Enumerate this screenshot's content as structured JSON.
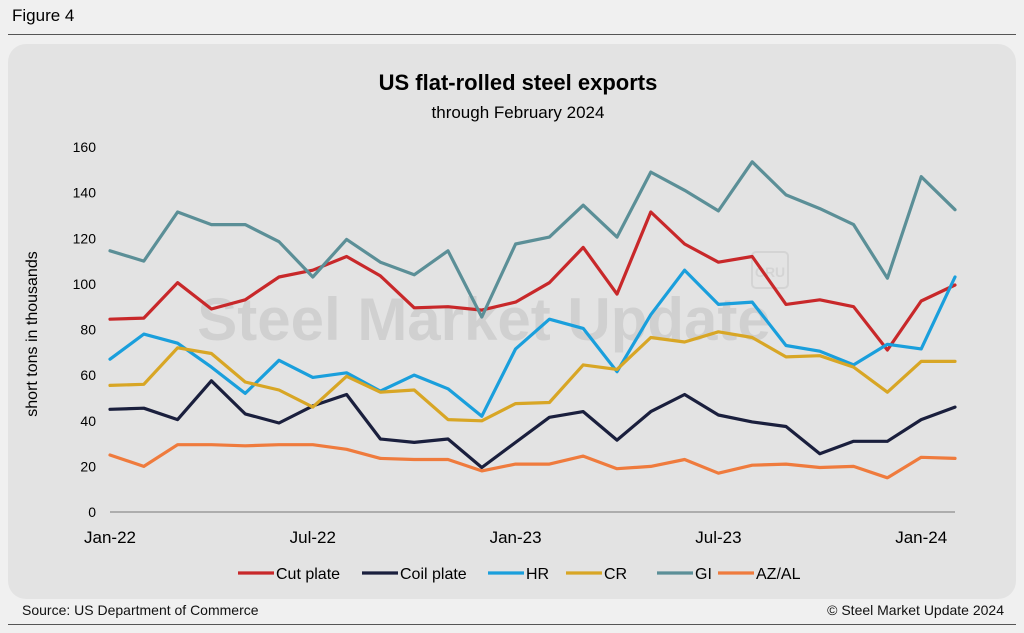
{
  "figure_label": "Figure 4",
  "watermark": "Steel Market Update",
  "watermark_badge": "CRU",
  "source": "Source: US Department of Commerce",
  "copyright": "© Steel Market Update 2024",
  "chart_data": {
    "type": "line",
    "title": "US flat-rolled steel exports",
    "subtitle": "through February 2024",
    "xlabel": "",
    "ylabel": "short tons in thousands",
    "ylim": [
      0,
      160
    ],
    "yticks": [
      "0",
      "20",
      "40",
      "60",
      "80",
      "100",
      "120",
      "140",
      "160"
    ],
    "xtick_labels": [
      {
        "index": 0,
        "label": "Jan-22"
      },
      {
        "index": 6,
        "label": "Jul-22"
      },
      {
        "index": 12,
        "label": "Jan-23"
      },
      {
        "index": 18,
        "label": "Jul-23"
      },
      {
        "index": 24,
        "label": "Jan-24"
      }
    ],
    "x": [
      "Jan-22",
      "Feb-22",
      "Mar-22",
      "Apr-22",
      "May-22",
      "Jun-22",
      "Jul-22",
      "Aug-22",
      "Sep-22",
      "Oct-22",
      "Nov-22",
      "Dec-22",
      "Jan-23",
      "Feb-23",
      "Mar-23",
      "Apr-23",
      "May-23",
      "Jun-23",
      "Jul-23",
      "Aug-23",
      "Sep-23",
      "Oct-23",
      "Nov-23",
      "Dec-23",
      "Jan-24",
      "Feb-24"
    ],
    "series": [
      {
        "name": "Cut plate",
        "color": "#c8282a",
        "values": [
          84.5,
          85,
          100.5,
          89,
          93,
          103,
          106,
          112,
          103.5,
          89.5,
          90,
          88.5,
          92,
          100.5,
          116,
          95.5,
          131.5,
          117.5,
          109.5,
          112,
          91,
          93,
          90,
          71,
          92.5,
          99.5
        ]
      },
      {
        "name": "Coil plate",
        "color": "#1a1f3d",
        "values": [
          45,
          45.5,
          40.5,
          57.5,
          43,
          39,
          46.5,
          51.5,
          32,
          30.5,
          32,
          19.5,
          30.5,
          41.5,
          44,
          31.5,
          44,
          51.5,
          42.5,
          39.5,
          37.5,
          25.5,
          31,
          31,
          40.5,
          46
        ]
      },
      {
        "name": "HR",
        "color": "#1a9fdc",
        "values": [
          67,
          78,
          74,
          63.5,
          52,
          66.5,
          59,
          61,
          53,
          60,
          54,
          42,
          71.5,
          84.5,
          80.5,
          61.5,
          86.5,
          106,
          91,
          92,
          73,
          70.5,
          64.5,
          73.5,
          71.5,
          103
        ]
      },
      {
        "name": "CR",
        "color": "#d8a625",
        "values": [
          55.5,
          56,
          72,
          69.5,
          57,
          53.5,
          46,
          59.5,
          52.5,
          53.5,
          40.5,
          40,
          47.5,
          48,
          64.5,
          62.5,
          76.5,
          74.5,
          79,
          76.5,
          68,
          68.5,
          63.5,
          52.5,
          66,
          66
        ]
      },
      {
        "name": "GI",
        "color": "#5b8f97",
        "values": [
          114.5,
          110,
          131.5,
          126,
          126,
          118.5,
          103,
          119.5,
          109.5,
          104,
          114.5,
          85.5,
          117.5,
          120.5,
          134.5,
          120.5,
          149,
          141,
          132,
          153.5,
          139,
          133,
          126,
          102.5,
          147,
          132.5
        ]
      },
      {
        "name": "AZ/AL",
        "color": "#ef7b3d",
        "values": [
          25,
          20,
          29.5,
          29.5,
          29,
          29.5,
          29.5,
          27.5,
          23.5,
          23,
          23,
          18,
          21,
          21,
          24.5,
          19,
          20,
          23,
          17,
          20.5,
          21,
          19.5,
          20,
          15,
          24,
          23.5
        ]
      }
    ]
  }
}
